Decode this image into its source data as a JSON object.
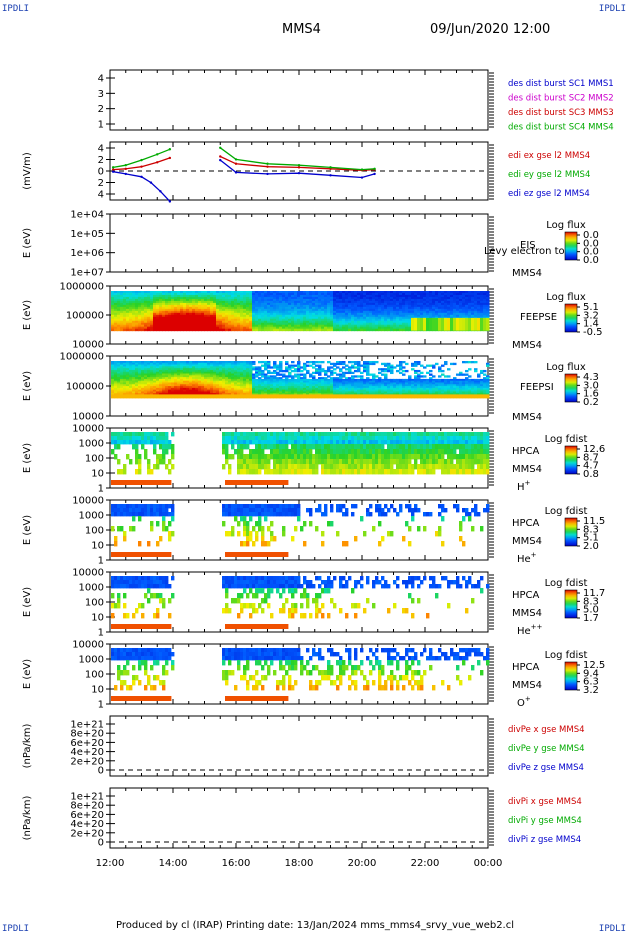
{
  "corner_label": "IPDLI",
  "spacecraft": "MMS4",
  "datetime": "09/Jun/2020 12:00",
  "footer": "Produced by cl (IRAP)   Printing date: 13/Jan/2024   mms_mms4_srvy_vue_web2.cl",
  "x_ticks": [
    "12:00",
    "14:00",
    "16:00",
    "18:00",
    "20:00",
    "22:00",
    "00:00"
  ],
  "chart_data": [
    {
      "type": "line",
      "panel": "des-dist-burst",
      "ylabel": "",
      "yticks": [
        "1",
        "2",
        "3",
        "4"
      ],
      "ylim": [
        1,
        4
      ],
      "legend": [
        {
          "text": "des dist burst SC1 MMS1",
          "color": "#0000cc"
        },
        {
          "text": "des dist burst SC2 MMS2",
          "color": "#cc00cc"
        },
        {
          "text": "des dist burst SC3 MMS3",
          "color": "#cc0000"
        },
        {
          "text": "des dist burst SC4 MMS4",
          "color": "#00aa00"
        }
      ]
    },
    {
      "type": "line",
      "panel": "edi-e-gse",
      "ylabel": "(mV/m)",
      "yticks": [
        "4",
        "2",
        "0",
        "2",
        "4"
      ],
      "ylim": [
        -4,
        4
      ],
      "zero_line": true,
      "legend": [
        {
          "text": "edi ex gse l2 MMS4",
          "color": "#cc0000"
        },
        {
          "text": "edi ey gse l2 MMS4",
          "color": "#00aa00"
        },
        {
          "text": "edi ez gse l2 MMS4",
          "color": "#0000cc"
        }
      ],
      "series": [
        {
          "name": "edi ex gse l2 MMS4",
          "x": [
            12.1,
            12.5,
            13.0,
            13.5,
            13.9,
            15.5,
            16.0,
            17.0,
            18.0,
            19.0,
            20.0,
            20.4
          ],
          "y": [
            0.2,
            0.3,
            0.6,
            1.2,
            1.8,
            2.0,
            1.0,
            0.6,
            0.5,
            0.3,
            0.1,
            0.2
          ]
        },
        {
          "name": "edi ey gse l2 MMS4",
          "x": [
            12.1,
            12.5,
            13.0,
            13.5,
            13.9,
            15.5,
            16.0,
            17.0,
            18.0,
            19.0,
            20.0,
            20.4
          ],
          "y": [
            0.5,
            0.8,
            1.5,
            2.3,
            3.0,
            3.2,
            1.6,
            1.0,
            0.8,
            0.5,
            0.2,
            0.3
          ]
        },
        {
          "name": "edi ez gse l2 MMS4",
          "x": [
            12.1,
            12.5,
            13.0,
            13.3,
            13.6,
            13.9,
            15.5,
            16.0,
            17.0,
            18.0,
            19.0,
            20.0,
            20.4
          ],
          "y": [
            -0.1,
            -0.4,
            -0.8,
            -1.6,
            -2.8,
            -4.2,
            1.5,
            -0.2,
            -0.4,
            -0.3,
            -0.6,
            -0.9,
            -0.4
          ]
        }
      ]
    },
    {
      "type": "heatmap",
      "panel": "eis",
      "ylabel": "E (eV)",
      "yticks": [
        "1e+04",
        "1e+05",
        "1e+06",
        "1e+07"
      ],
      "right_labels": [
        "EIS",
        "MMS4"
      ],
      "overlay_text": "Levy electron to",
      "colorbar_title": "Log flux",
      "colorbar_ticks": [
        "0.0",
        "0.0",
        "0.0",
        "0.0"
      ]
    },
    {
      "type": "heatmap",
      "panel": "feeps-e",
      "ylabel": "E (eV)",
      "yticks": [
        "1000000",
        "100000",
        "10000"
      ],
      "right_labels": [
        "FEEPSE",
        "MMS4"
      ],
      "colorbar_title": "Log flux",
      "colorbar_ticks": [
        "5.1",
        "3.2",
        "1.4",
        "-0.5"
      ]
    },
    {
      "type": "heatmap",
      "panel": "feeps-i",
      "ylabel": "E (eV)",
      "yticks": [
        "1000000",
        "100000",
        "10000"
      ],
      "right_labels": [
        "FEEPSI",
        "MMS4"
      ],
      "colorbar_title": "Log flux",
      "colorbar_ticks": [
        "4.3",
        "3.0",
        "1.6",
        "0.2"
      ]
    },
    {
      "type": "heatmap",
      "panel": "hpca-h",
      "ylabel": "E (eV)",
      "yticks": [
        "10000",
        "1000",
        "100",
        "10",
        "1"
      ],
      "right_labels": [
        "HPCA",
        "MMS4"
      ],
      "species": "H",
      "species_sup": "+",
      "colorbar_title": "Log fdist",
      "colorbar_ticks": [
        "12.6",
        "8.7",
        "4.7",
        "0.8"
      ]
    },
    {
      "type": "heatmap",
      "panel": "hpca-he",
      "ylabel": "E (eV)",
      "yticks": [
        "10000",
        "1000",
        "100",
        "10",
        "1"
      ],
      "right_labels": [
        "HPCA",
        "MMS4"
      ],
      "species": "He",
      "species_sup": "+",
      "colorbar_title": "Log fdist",
      "colorbar_ticks": [
        "11.5",
        "8.3",
        "5.1",
        "2.0"
      ]
    },
    {
      "type": "heatmap",
      "panel": "hpca-hepp",
      "ylabel": "E (eV)",
      "yticks": [
        "10000",
        "1000",
        "100",
        "10",
        "1"
      ],
      "right_labels": [
        "HPCA",
        "MMS4"
      ],
      "species": "He",
      "species_sup": "++",
      "colorbar_title": "Log fdist",
      "colorbar_ticks": [
        "11.7",
        "8.3",
        "5.0",
        "1.7"
      ]
    },
    {
      "type": "heatmap",
      "panel": "hpca-o",
      "ylabel": "E (eV)",
      "yticks": [
        "10000",
        "1000",
        "100",
        "10",
        "1"
      ],
      "right_labels": [
        "HPCA",
        "MMS4"
      ],
      "species": "O",
      "species_sup": "+",
      "colorbar_title": "Log fdist",
      "colorbar_ticks": [
        "12.5",
        "9.4",
        "6.3",
        "3.2"
      ]
    },
    {
      "type": "line",
      "panel": "divpe",
      "ylabel": "(nPa/km)",
      "yticks": [
        "0",
        "2e+20",
        "4e+20",
        "6e+20",
        "8e+20",
        "1e+21"
      ],
      "ylim": [
        0,
        1e+21
      ],
      "zero_line": true,
      "legend": [
        {
          "text": "divPe x gse MMS4",
          "color": "#cc0000"
        },
        {
          "text": "divPe y gse MMS4",
          "color": "#00aa00"
        },
        {
          "text": "divPe z gse MMS4",
          "color": "#0000cc"
        }
      ]
    },
    {
      "type": "line",
      "panel": "divpi",
      "ylabel": "(nPa/km)",
      "yticks": [
        "0",
        "2e+20",
        "4e+20",
        "6e+20",
        "8e+20",
        "1e+21"
      ],
      "ylim": [
        0,
        1e+21
      ],
      "zero_line": true,
      "legend": [
        {
          "text": "divPi x gse MMS4",
          "color": "#cc0000"
        },
        {
          "text": "divPi y gse MMS4",
          "color": "#00aa00"
        },
        {
          "text": "divPi z gse MMS4",
          "color": "#0000cc"
        }
      ]
    }
  ]
}
